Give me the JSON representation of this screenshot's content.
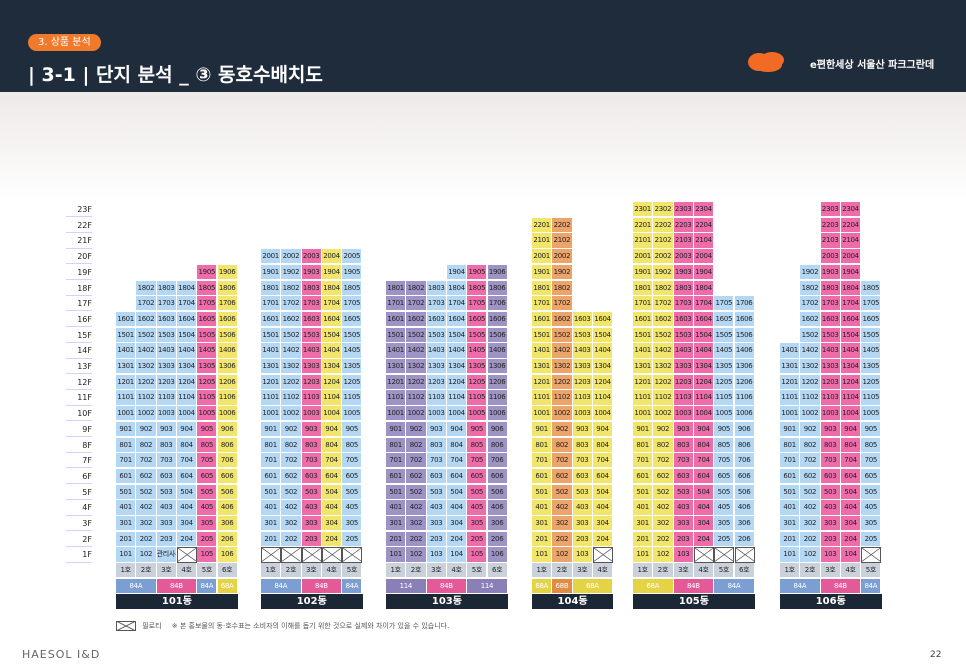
{
  "header": {
    "section": "3. 상품 분석",
    "title": "| 3-1 |  단지 분석 _ ③ 동호수배치도",
    "brand": "e편한세상 서울산 파크그란데"
  },
  "colors": {
    "blue": "#b4d7f4",
    "yellow": "#f1e66b",
    "pink": "#ef6cab",
    "purple": "#9e93c5",
    "orange": "#eda46a",
    "gray": "#cbd1db"
  },
  "floors": [
    "23F",
    "22F",
    "21F",
    "20F",
    "19F",
    "18F",
    "17F",
    "16F",
    "15F",
    "14F",
    "13F",
    "12F",
    "11F",
    "10F",
    "9F",
    "8F",
    "7F",
    "6F",
    "5F",
    "4F",
    "3F",
    "2F",
    "1F"
  ],
  "buildings": [
    {
      "name": "101동",
      "units": 6,
      "cols": [
        "blue",
        "blue",
        "blue",
        "blue",
        "pink",
        "yellow"
      ],
      "top": [
        16,
        18,
        18,
        18,
        19,
        19
      ],
      "bottom": [
        1,
        1,
        1,
        1,
        1,
        1
      ],
      "first": [
        "101",
        "102",
        "관리사무소",
        "",
        "105",
        "106"
      ],
      "lines": [
        "1호",
        "2호",
        "3호",
        "4호",
        "5호",
        "6호"
      ],
      "types": [
        [
          "84A",
          2
        ],
        [
          "84B",
          2
        ],
        [
          "84A",
          1
        ],
        [
          "68A",
          1
        ]
      ]
    },
    {
      "name": "102동",
      "units": 5,
      "cols": [
        "blue",
        "blue",
        "pink",
        "yellow",
        "blue"
      ],
      "top": [
        20,
        20,
        20,
        20,
        20
      ],
      "bottom": [
        2,
        2,
        2,
        2,
        2
      ],
      "first": [
        "",
        "",
        "",
        "",
        ""
      ],
      "lines": [
        "1호",
        "2호",
        "3호",
        "4호",
        "5호"
      ],
      "types": [
        [
          "84A",
          2
        ],
        [
          "84B",
          2
        ],
        [
          "84A",
          1
        ]
      ]
    },
    {
      "name": "103동",
      "units": 6,
      "cols": [
        "purple",
        "purple",
        "blue",
        "blue",
        "pink",
        "purple"
      ],
      "top": [
        18,
        18,
        18,
        19,
        19,
        19
      ],
      "bottom": [
        1,
        1,
        1,
        1,
        1,
        1
      ],
      "first": [
        "101",
        "102",
        "103",
        "104",
        "105",
        "106"
      ],
      "lines": [
        "1호",
        "2호",
        "3호",
        "4호",
        "5호",
        "6호"
      ],
      "types": [
        [
          "114",
          2
        ],
        [
          "84B",
          2
        ],
        [
          "114",
          2
        ]
      ]
    },
    {
      "name": "104동",
      "units": 4,
      "cols": [
        "yellow",
        "orange",
        "yellow",
        "yellow"
      ],
      "top": [
        22,
        22,
        16,
        16
      ],
      "bottom": [
        1,
        1,
        1,
        2
      ],
      "first": [
        "101",
        "102",
        "103",
        ""
      ],
      "lines": [
        "1호",
        "2호",
        "3호",
        "4호"
      ],
      "types": [
        [
          "68A",
          1
        ],
        [
          "68B",
          1
        ],
        [
          "68A",
          2
        ]
      ]
    },
    {
      "name": "105동",
      "units": 6,
      "cols": [
        "yellow",
        "yellow",
        "pink",
        "pink",
        "blue",
        "blue"
      ],
      "top": [
        23,
        23,
        23,
        23,
        17,
        17
      ],
      "bottom": [
        1,
        1,
        1,
        2,
        2,
        2
      ],
      "first": [
        "101",
        "102",
        "103",
        "",
        "",
        ""
      ],
      "lines": [
        "1호",
        "2호",
        "3호",
        "4호",
        "5호",
        "6호"
      ],
      "types": [
        [
          "68A",
          2
        ],
        [
          "84B",
          2
        ],
        [
          "84A",
          2
        ]
      ]
    },
    {
      "name": "106동",
      "units": 5,
      "cols": [
        "blue",
        "blue",
        "pink",
        "pink",
        "blue"
      ],
      "top": [
        14,
        19,
        23,
        23,
        18
      ],
      "bottom": [
        1,
        1,
        1,
        1,
        2
      ],
      "first": [
        "101",
        "102",
        "103",
        "104",
        ""
      ],
      "lines": [
        "1호",
        "2호",
        "3호",
        "4호",
        "5호"
      ],
      "types": [
        [
          "84A",
          2
        ],
        [
          "84B",
          2
        ],
        [
          "84A",
          1
        ]
      ]
    }
  ],
  "legend": {
    "pilotis": "필로티",
    "note": "※ 본 홍보물의 동·호수표는 소비자의 이해를 돕기 위한 것으로 실제와 차이가 있을 수 있습니다."
  },
  "footer": {
    "logo": "HAESOL I&D",
    "page": "22"
  }
}
